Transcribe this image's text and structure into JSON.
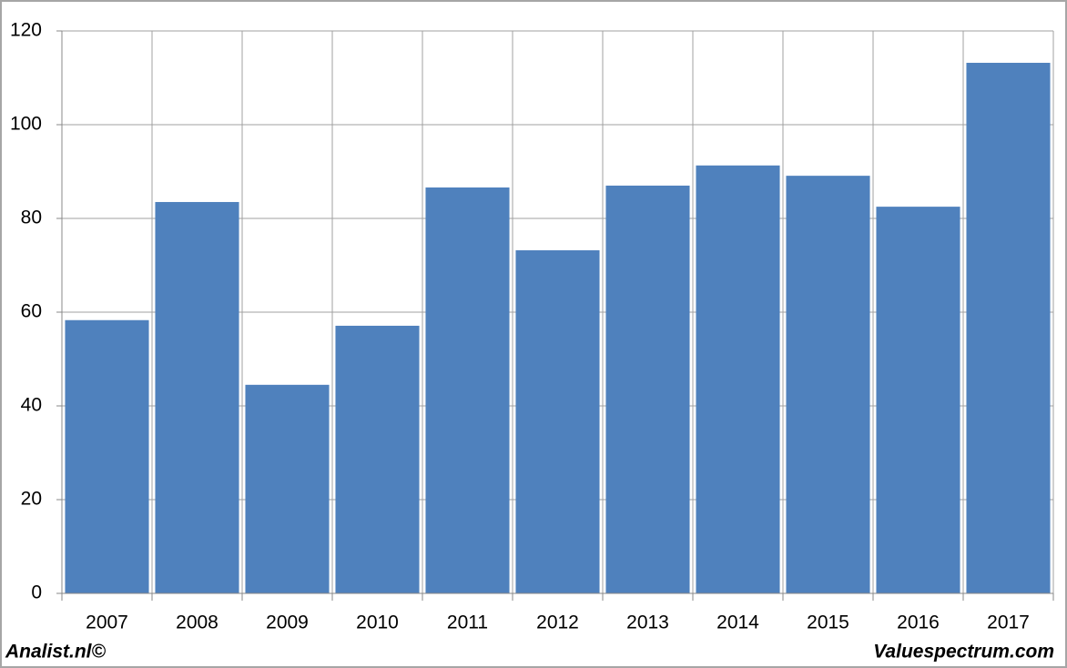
{
  "chart_data": {
    "type": "bar",
    "categories": [
      "2007",
      "2008",
      "2009",
      "2010",
      "2011",
      "2012",
      "2013",
      "2014",
      "2015",
      "2016",
      "2017"
    ],
    "values": [
      58.3,
      83.5,
      44.5,
      57.1,
      86.6,
      73.2,
      87,
      91.3,
      89.1,
      82.5,
      113.2
    ],
    "color": "#4f81bd",
    "ylim": [
      0,
      120
    ],
    "yticks": [
      0,
      20,
      40,
      60,
      80,
      100,
      120
    ],
    "grid": true,
    "source_left": "Analist.nl©",
    "source_right": "Valuespectrum.com"
  }
}
